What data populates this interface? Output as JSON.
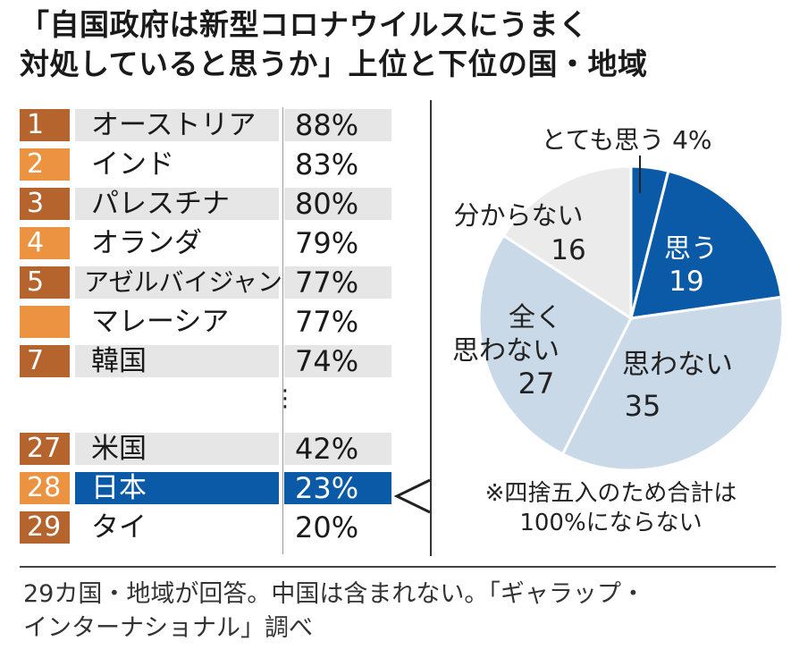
{
  "title": {
    "line1": "「自国政府は新型コロナウイルスにうまく",
    "line2": "対処していると思うか」上位と下位の国・地域"
  },
  "ranking": [
    {
      "rank": "1",
      "name": "オーストリア",
      "pct": "88%"
    },
    {
      "rank": "2",
      "name": "インド",
      "pct": "83%"
    },
    {
      "rank": "3",
      "name": "パレスチナ",
      "pct": "80%"
    },
    {
      "rank": "4",
      "name": "オランダ",
      "pct": "79%"
    },
    {
      "rank": "5",
      "name": "アゼルバイジャン",
      "pct": "77%"
    },
    {
      "rank": "",
      "name": "マレーシア",
      "pct": "77%"
    },
    {
      "rank": "7",
      "name": "韓国",
      "pct": "74%"
    },
    {
      "rank": "27",
      "name": "米国",
      "pct": "42%"
    },
    {
      "rank": "28",
      "name": "日本",
      "pct": "23%"
    },
    {
      "rank": "29",
      "name": "タイ",
      "pct": "20%"
    }
  ],
  "ellipsis": "⋮",
  "chart_data": {
    "type": "pie",
    "title": "日本",
    "slices": [
      {
        "label": "とても思う",
        "value": 4,
        "display": "4%",
        "color": "#0a5aa8"
      },
      {
        "label": "思う",
        "value": 19,
        "display": "19",
        "color": "#0a5aa8"
      },
      {
        "label": "思わない",
        "value": 35,
        "display": "35",
        "color": "#c9d9e8"
      },
      {
        "label": "全く思わない",
        "value": 27,
        "display": "27",
        "color": "#c9d9e8"
      },
      {
        "label": "分からない",
        "value": 16,
        "display": "16",
        "color": "#ebebeb"
      }
    ],
    "labels": {
      "very": "とても思う 4%",
      "think_l": "思う",
      "think_v": "19",
      "notthink_l": "思わない",
      "notthink_v": "35",
      "never_l1": "全く",
      "never_l2": "思わない",
      "never_v": "27",
      "dunno_l": "分からない",
      "dunno_v": "16"
    }
  },
  "note": {
    "line1": "※四捨五入のため合計は",
    "line2": "100%にならない"
  },
  "source": {
    "line1": "29カ国・地域が回答。中国は含まれない。「ギャラップ・",
    "line2": "インターナショナル」調べ"
  },
  "colors": {
    "rank_dark": "#b6642e",
    "rank_light": "#eb9340",
    "highlight": "#0a5aa8",
    "pie_light_blue": "#c9d9e8",
    "pie_gray": "#ebebeb"
  }
}
